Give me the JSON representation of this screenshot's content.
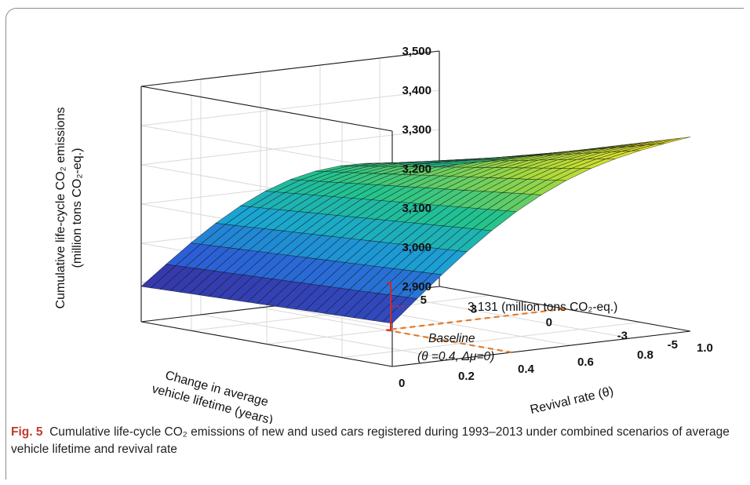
{
  "chart_data": {
    "type": "surface",
    "zlabel": [
      "Cumulative life-cycle CO₂ emissions",
      "(million tons CO₂-eq.)"
    ],
    "xlabel": [
      "Change in average",
      "vehicle lifetime (years)"
    ],
    "ylabel": "Revival rate (θ)",
    "z_ticks": [
      "2,900",
      "3,000",
      "3,100",
      "3,200",
      "3,300",
      "3,400",
      "3,500"
    ],
    "zlim": [
      2900,
      3500
    ],
    "lifetime_ticks": [
      "5",
      "3",
      "0",
      "-3",
      "-5"
    ],
    "lifetime_range": [
      -5,
      5
    ],
    "revival_ticks": [
      "0",
      "0.2",
      "0.4",
      "0.6",
      "0.8",
      "1.0"
    ],
    "revival_range": [
      0,
      1
    ],
    "grid": true,
    "colormap": [
      "#3b1e8c",
      "#2c5fd6",
      "#1aa4d4",
      "#22c38e",
      "#a8d93b",
      "#fde725"
    ],
    "corner_values": [
      {
        "lifetime_change": 5,
        "revival_rate": 1.0,
        "emissions": 2990
      },
      {
        "lifetime_change": 5,
        "revival_rate": 0.0,
        "emissions": 3205
      },
      {
        "lifetime_change": -5,
        "revival_rate": 1.0,
        "emissions": 3010
      },
      {
        "lifetime_change": -5,
        "revival_rate": 0.0,
        "emissions": 3395
      }
    ],
    "baseline": {
      "lifetime_change": 0,
      "revival_rate": 0.4,
      "emissions": 3131,
      "label": "3,131 (million tons CO₂-eq.)",
      "title": "Baseline",
      "params": "(θ =0.4, Δμ=0)"
    }
  },
  "caption": {
    "label": "Fig. 5",
    "text": "Cumulative life-cycle CO₂ emissions of new and used cars registered during 1993–2013 under combined scenarios of average vehicle lifetime and revival rate"
  }
}
